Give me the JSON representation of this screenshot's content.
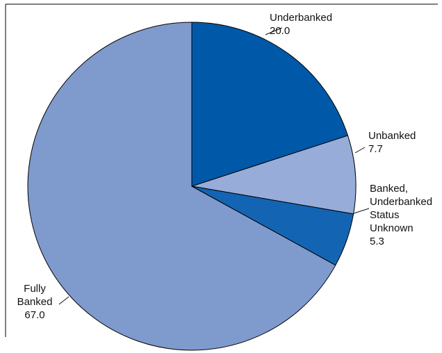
{
  "chart_data": {
    "type": "pie",
    "slices": [
      {
        "label": [
          "Underbanked"
        ],
        "value": 20.0,
        "value_label": "20.0",
        "color": "#0058a8"
      },
      {
        "label": [
          "Unbanked"
        ],
        "value": 7.7,
        "value_label": "7.7",
        "color": "#97acd9"
      },
      {
        "label": [
          "Banked,",
          "Underbanked",
          "Status",
          "Unknown"
        ],
        "value": 5.3,
        "value_label": "5.3",
        "color": "#1464b4"
      },
      {
        "label": [
          "Fully",
          "Banked"
        ],
        "value": 67.0,
        "value_label": "67.0",
        "color": "#7f9acd"
      }
    ],
    "start_angle_deg": 0,
    "direction": "clockwise_from_12_oclock",
    "slice_border_color": "#000000"
  }
}
